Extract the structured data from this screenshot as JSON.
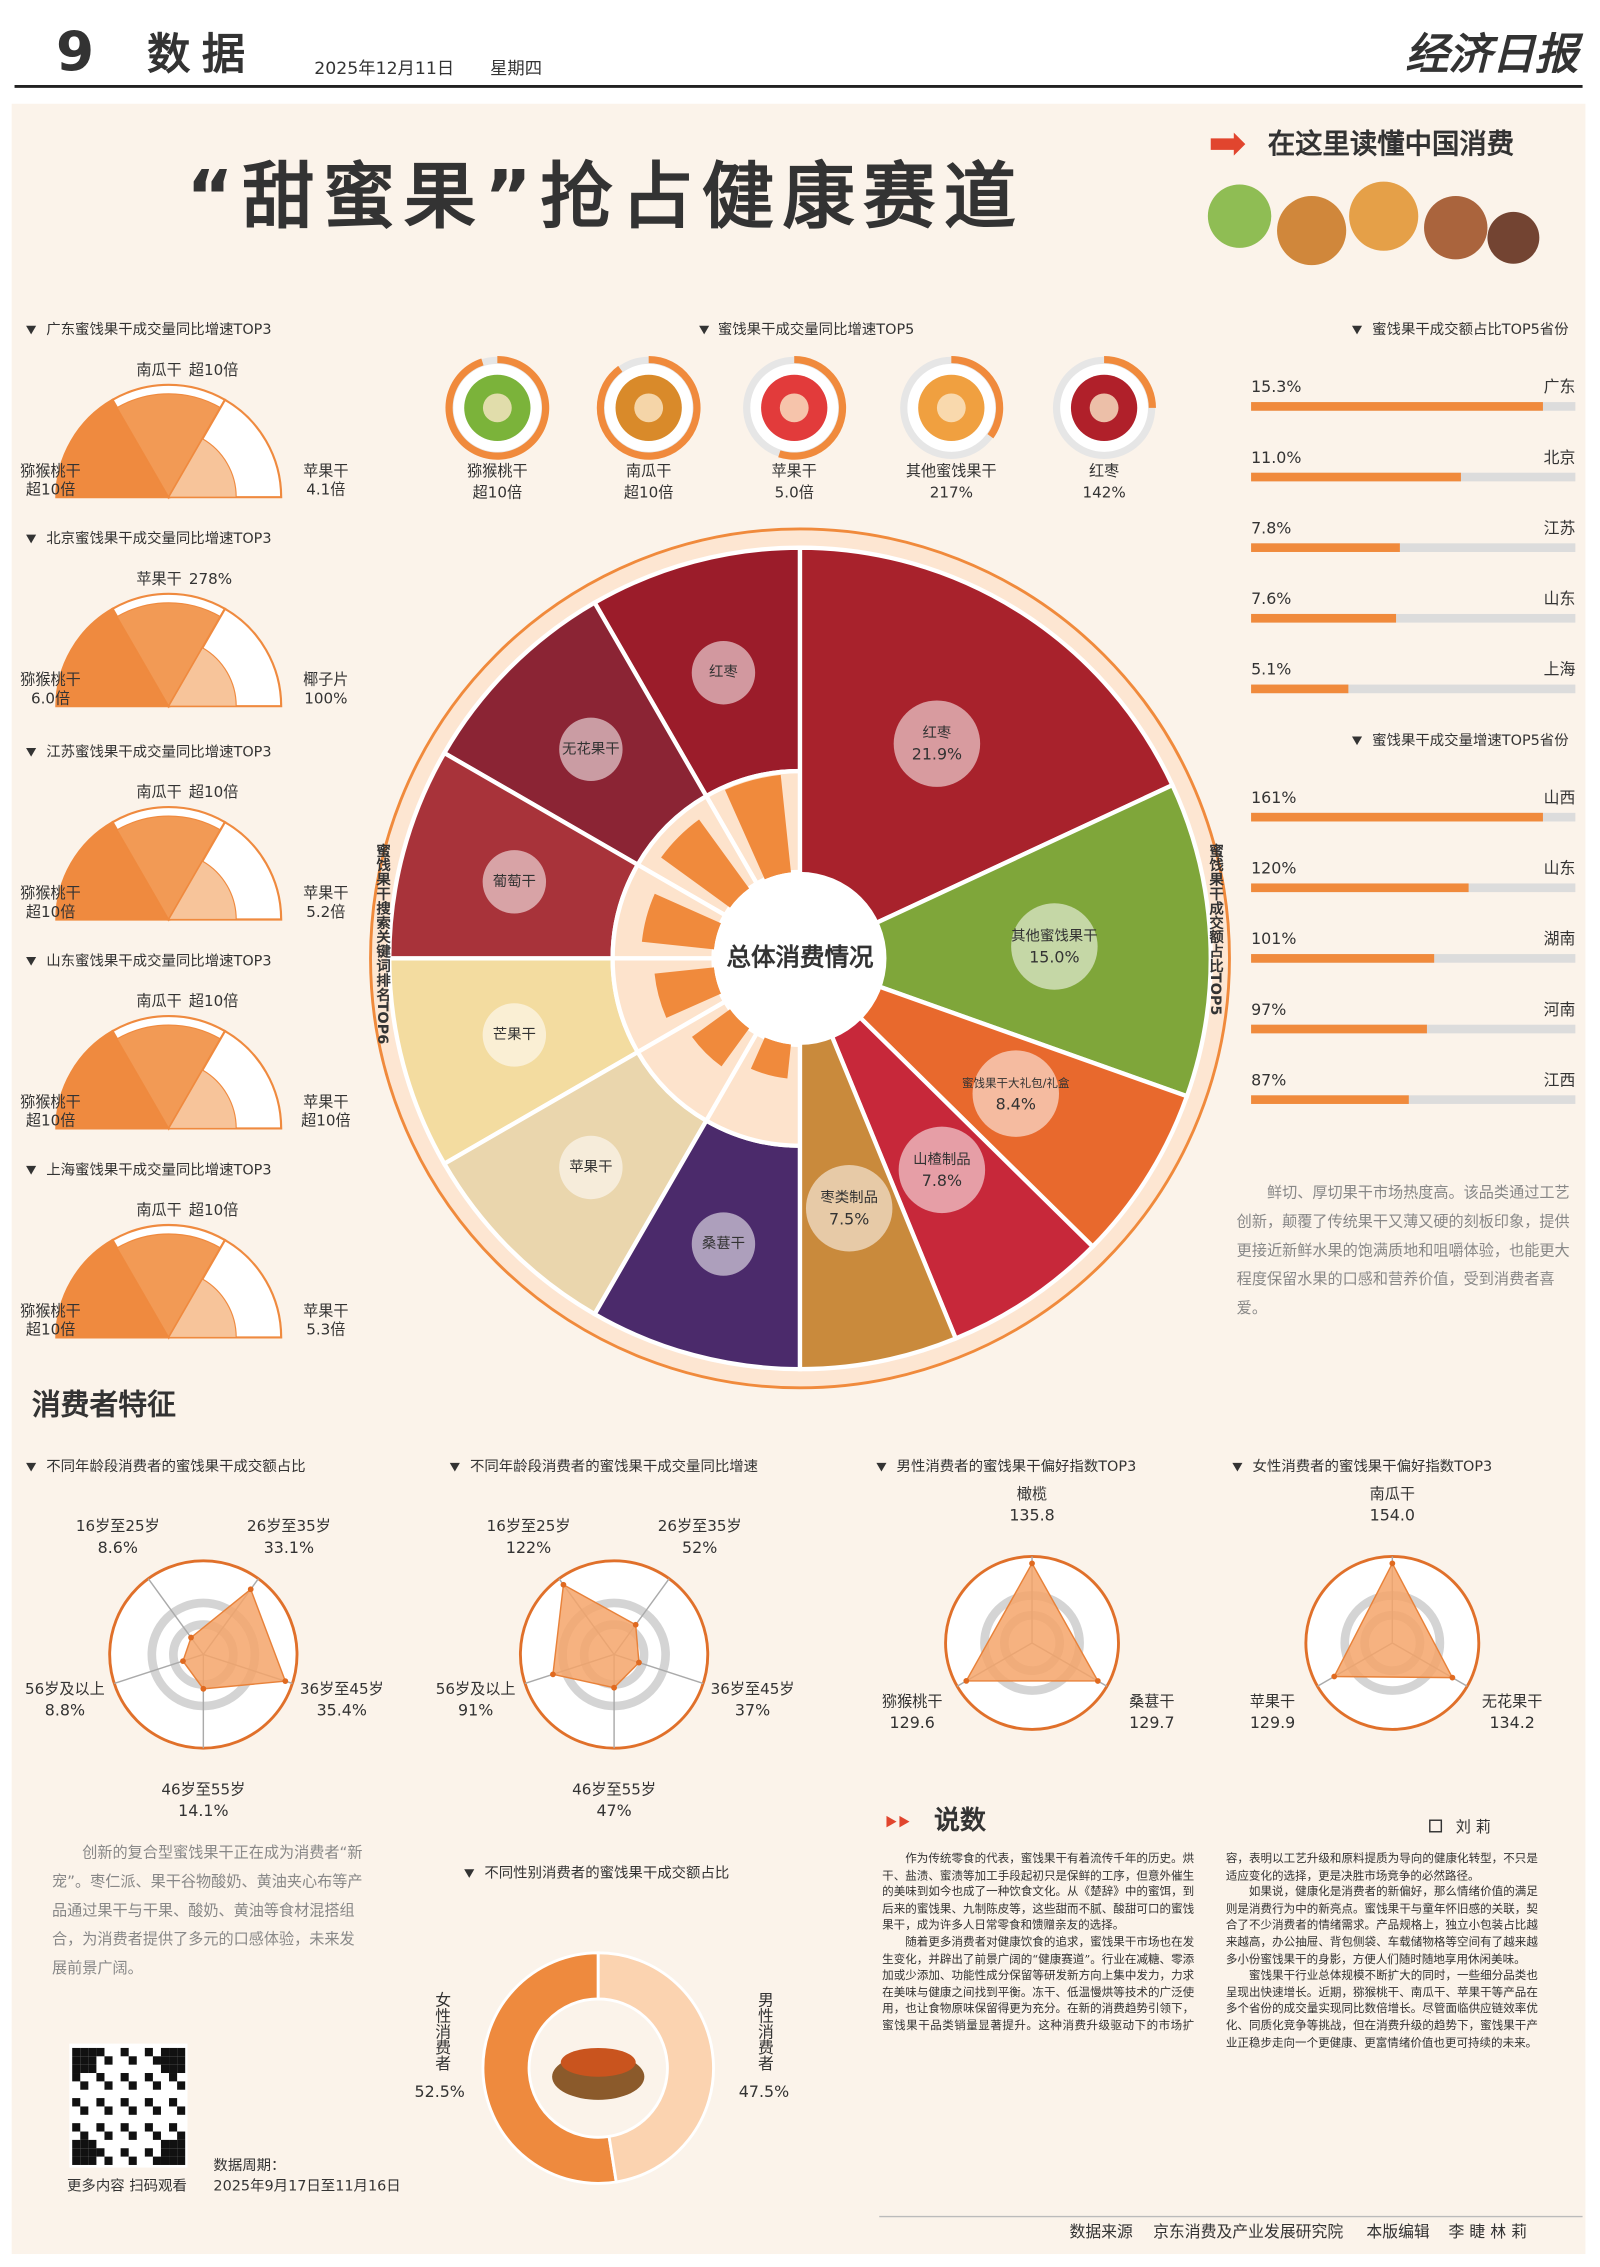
{
  "header": {
    "page": "9",
    "section": "数据",
    "date": "2025年12月11日",
    "weekday": "星期四",
    "paper": "经济日报"
  },
  "title": "“甜蜜果”抢占健康赛道",
  "banner": "在这里读懂中国消费",
  "province_growth": [
    {
      "title": "广东蜜饯果干成交量同比增速TOP3",
      "items": [
        {
          "name": "猕猴桃干",
          "label": "超10倍"
        },
        {
          "name": "南瓜干",
          "label": "超10倍"
        },
        {
          "name": "苹果干",
          "label": "4.1倍"
        }
      ]
    },
    {
      "title": "北京蜜饯果干成交量同比增速TOP3",
      "items": [
        {
          "name": "猕猴桃干",
          "label": "6.0倍"
        },
        {
          "name": "苹果干",
          "label": "278%"
        },
        {
          "name": "椰子片",
          "label": "100%"
        }
      ]
    },
    {
      "title": "江苏蜜饯果干成交量同比增速TOP3",
      "items": [
        {
          "name": "猕猴桃干",
          "label": "超10倍"
        },
        {
          "name": "南瓜干",
          "label": "超10倍"
        },
        {
          "name": "苹果干",
          "label": "5.2倍"
        }
      ]
    },
    {
      "title": "山东蜜饯果干成交量同比增速TOP3",
      "items": [
        {
          "name": "猕猴桃干",
          "label": "超10倍"
        },
        {
          "name": "南瓜干",
          "label": "超10倍"
        },
        {
          "name": "苹果干",
          "label": "超10倍"
        }
      ]
    },
    {
      "title": "上海蜜饯果干成交量同比增速TOP3",
      "items": [
        {
          "name": "猕猴桃干",
          "label": "超10倍"
        },
        {
          "name": "南瓜干",
          "label": "超10倍"
        },
        {
          "name": "苹果干",
          "label": "5.3倍"
        }
      ]
    }
  ],
  "top5_growth": {
    "title": "蜜饯果干成交量同比增速TOP5",
    "items": [
      {
        "name": "猕猴桃干",
        "label": "超10倍"
      },
      {
        "name": "南瓜干",
        "label": "超10倍"
      },
      {
        "name": "苹果干",
        "label": "5.0倍"
      },
      {
        "name": "其他蜜饯果干",
        "label": "217%"
      },
      {
        "name": "红枣",
        "label": "142%"
      }
    ]
  },
  "overview": {
    "title": "总体消费情况",
    "search_title": "蜜饯果干搜索关键词排名TOP6",
    "search": [
      "红枣",
      "无花果干",
      "葡萄干",
      "芒果干",
      "苹果干",
      "桑葚干"
    ]
  },
  "chart_data": [
    {
      "type": "pie",
      "title": "蜜饯果干成交额占比TOP5",
      "categories": [
        "红枣",
        "其他蜜饯果干",
        "蜜饯果干大礼包/礼盒",
        "山楂制品",
        "枣类制品"
      ],
      "values": [
        21.9,
        15.0,
        8.4,
        7.8,
        7.5
      ],
      "value_labels": [
        "21.9%",
        "15.0%",
        "8.4%",
        "7.8%",
        "7.5%"
      ],
      "colors": [
        "#a8222c",
        "#7fa63a",
        "#e8692d",
        "#c7283a",
        "#c98a3c"
      ]
    },
    {
      "type": "bar",
      "title": "蜜饯果干成交额占比TOP5省份",
      "categories": [
        "广东",
        "北京",
        "江苏",
        "山东",
        "上海"
      ],
      "values": [
        15.3,
        11.0,
        7.8,
        7.6,
        5.1
      ],
      "value_labels": [
        "15.3%",
        "11.0%",
        "7.8%",
        "7.6%",
        "5.1%"
      ],
      "color": "#f08a3c"
    },
    {
      "type": "bar",
      "title": "蜜饯果干成交量增速TOP5省份",
      "categories": [
        "山西",
        "山东",
        "湖南",
        "河南",
        "江西"
      ],
      "values": [
        161,
        120,
        101,
        97,
        87
      ],
      "value_labels": [
        "161%",
        "120%",
        "101%",
        "97%",
        "87%"
      ],
      "color": "#f08a3c"
    },
    {
      "type": "radar",
      "title": "不同年龄段消费者的蜜饯果干成交额占比",
      "categories": [
        "16岁至25岁",
        "26岁至35岁",
        "36岁至45岁",
        "46岁至55岁",
        "56岁及以上"
      ],
      "values": [
        8.6,
        33.1,
        35.4,
        14.1,
        8.8
      ],
      "value_labels": [
        "8.6%",
        "33.1%",
        "35.4%",
        "14.1%",
        "8.8%"
      ],
      "color": "#f4a46a"
    },
    {
      "type": "radar",
      "title": "不同年龄段消费者的蜜饯果干成交量同比增速",
      "categories": [
        "16岁至25岁",
        "26岁至35岁",
        "36岁至45岁",
        "46岁至55岁",
        "56岁及以上"
      ],
      "values": [
        122,
        52,
        37,
        47,
        91
      ],
      "value_labels": [
        "122%",
        "52%",
        "37%",
        "47%",
        "91%"
      ],
      "color": "#f4a46a"
    },
    {
      "type": "radar",
      "title": "男性消费者的蜜饯果干偏好指数TOP3",
      "categories": [
        "橄榄",
        "桑葚干",
        "猕猴桃干"
      ],
      "values": [
        135.8,
        129.7,
        129.6
      ],
      "color": "#f4a46a"
    },
    {
      "type": "radar",
      "title": "女性消费者的蜜饯果干偏好指数TOP3",
      "categories": [
        "南瓜干",
        "无花果干",
        "苹果干"
      ],
      "values": [
        154.0,
        134.2,
        129.9
      ],
      "value_labels": [
        "154.0",
        "134.2",
        "129.9"
      ],
      "color": "#f4a46a"
    },
    {
      "type": "donut",
      "title": "不同性别消费者的蜜饯果干成交额占比",
      "categories": [
        "女性消费者",
        "男性消费者"
      ],
      "values": [
        52.5,
        47.5
      ],
      "value_labels": [
        "52.5%",
        "47.5%"
      ],
      "colors": [
        "#ee8a3e",
        "#fbd3b0"
      ]
    }
  ],
  "consumer_heading": "消费者特征",
  "notes": {
    "fresh_cut": "鲜切、厚切果干市场热度高。该品类通过工艺创新，颠覆了传统果干又薄又硬的刻板印象，提供更接近新鲜水果的饱满质地和咀嚼体验，也能更大程度保留水果的口感和营养价值，受到消费者喜爱。",
    "compound": "创新的复合型蜜饯果干正在成为消费者“新宠”。枣仁派、果干谷物酸奶、黄油夹心布等产品通过果干与干果、酸奶、黄油等食材混搭组合，为消费者提供了多元的口感体验，未来发展前景广阔。"
  },
  "qr_caption": "更多内容 扫码观看",
  "data_period": {
    "label": "数据周期：",
    "range": "2025年9月17日至11月16日"
  },
  "article": {
    "heading": "说数",
    "author": "刘 莉",
    "paragraphs": [
      "作为传统零食的代表，蜜饯果干有着流传千年的历史。烘干、盐渍、蜜渍等加工手段起初只是保鲜的工序，但意外催生的美味到如今也成了一种饮食文化。从《楚辞》中的蜜饵，到后来的蜜饯果、九制陈皮等，这些甜而不腻、酸甜可口的蜜饯果干，成为许多人日常零食和馈赠亲友的选择。",
      "随着更多消费者对健康饮食的追求，蜜饯果干市场也在发生变化，并辟出了前景广阔的“健康赛道”。行业在减糖、零添加或少添加、功能性成分保留等研发新方向上集中发力，力求在美味与健康之间找到平衡。冻干、低温慢烘等技术的广泛使用，也让食物原味保留得更为充分。在新的消费趋势引领下，蜜饯果干品类销量显著提升。这种消费升级驱动下的市场扩容，表明以工艺升级和原料提质为导向的健康化转型，不只是适应变化的选择，更是决胜市场竞争的必然路径。",
      "如果说，健康化是消费者的新偏好，那么情绪价值的满足则是消费行为中的新亮点。蜜饯果干与童年怀旧感的关联，契合了不少消费者的情绪需求。产品规格上，独立小包装占比越来越高，办公抽屉、背包侧袋、车载储物格等空间有了越来越多小份蜜饯果干的身影，方便人们随时随地享用休闲美味。",
      "蜜饯果干行业总体规模不断扩大的同时，一些细分品类也呈现出快速增长。近期，猕猴桃干、南瓜干、苹果干等产品在多个省份的成交量实现同比数倍增长。尽管面临供应链效率优化、同质化竞争等挑战，但在消费升级的趋势下，蜜饯果干产业正稳步走向一个更健康、更富情绪价值也更可持续的未来。"
    ]
  },
  "footer": {
    "source_label": "数据来源",
    "source": "京东消费及产业发展研究院",
    "editor_label": "本版编辑",
    "editors": "李 睫  林 莉"
  }
}
